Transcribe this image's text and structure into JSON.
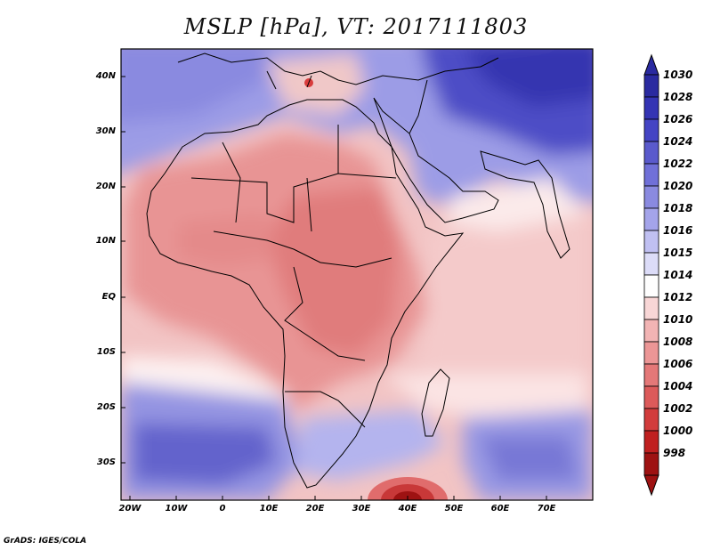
{
  "title": "MSLP [hPa], VT: 2017111803",
  "credit": "GrADS: IGES/COLA",
  "map": {
    "lat_labels": [
      "40N",
      "30N",
      "20N",
      "10N",
      "EQ",
      "10S",
      "20S",
      "30S"
    ],
    "lon_labels": [
      "20W",
      "10W",
      "0",
      "10E",
      "20E",
      "30E",
      "40E",
      "50E",
      "60E",
      "70E"
    ]
  },
  "colorbar": {
    "levels": [
      "1030",
      "1028",
      "1026",
      "1024",
      "1022",
      "1020",
      "1018",
      "1016",
      "1015",
      "1014",
      "1012",
      "1010",
      "1008",
      "1006",
      "1004",
      "1002",
      "1000",
      "998"
    ],
    "colors": [
      "#2a2aa0",
      "#3434b4",
      "#4444c4",
      "#5a5acc",
      "#7070d8",
      "#8a8ae0",
      "#a4a4ea",
      "#c0c0f2",
      "#dcdcf8",
      "#fefefe",
      "#f8d6d6",
      "#f2b4b4",
      "#ec9696",
      "#e47878",
      "#dc5a5a",
      "#d23c3c",
      "#c02020",
      "#9e1212"
    ]
  }
}
